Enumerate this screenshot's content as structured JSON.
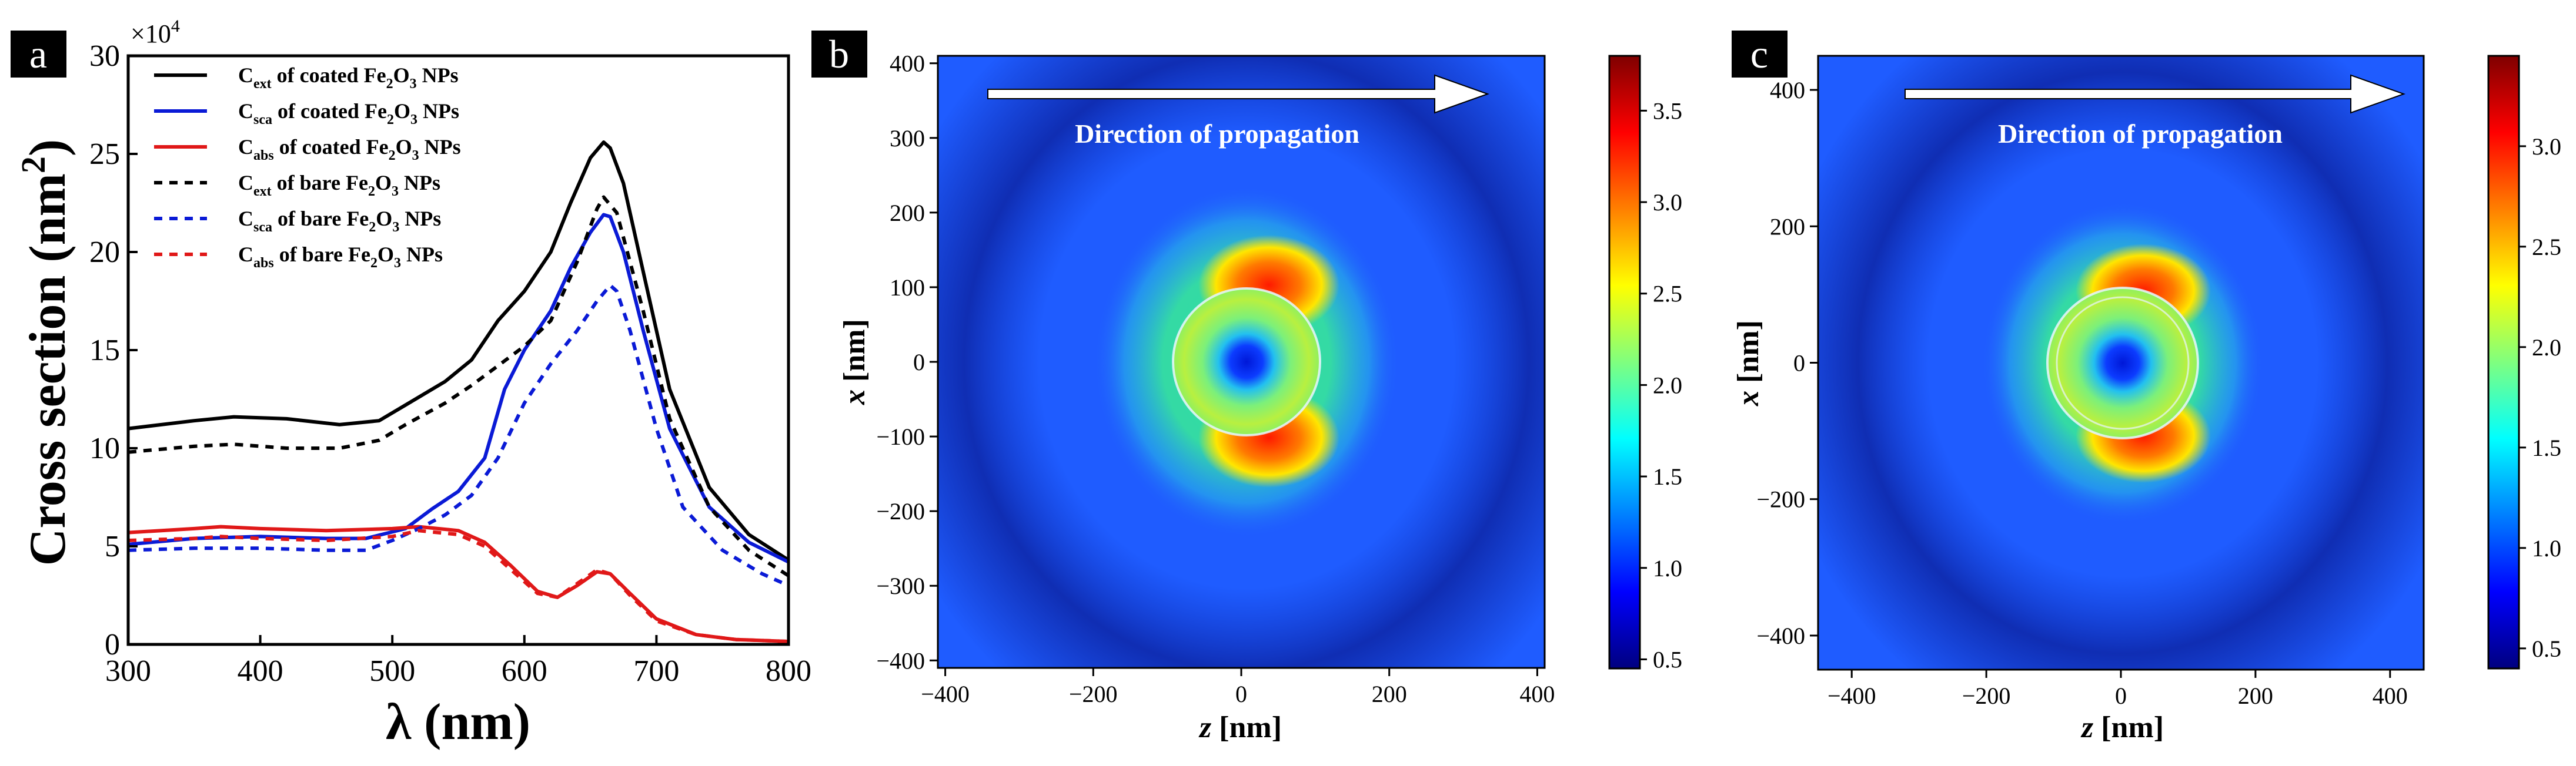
{
  "panel_labels": [
    "a",
    "b",
    "c"
  ],
  "chart_data": [
    {
      "type": "line",
      "panel": "a",
      "xlabel": "λ (nm)",
      "ylabel": "Cross section (nm²)",
      "ylabel_main": "Cross section (nm",
      "ylabel_sup": "2",
      "ylabel_close": ")",
      "y_multiplier": "×10",
      "y_multiplier_exp": "4",
      "xlim": [
        300,
        800
      ],
      "ylim": [
        0,
        30
      ],
      "xticks": [
        300,
        400,
        500,
        600,
        700,
        800
      ],
      "yticks": [
        0,
        5,
        10,
        15,
        20,
        25,
        30
      ],
      "series": [
        {
          "name": "Cext of coated Fe2O3 NPs",
          "sub": "ext",
          "color": "#000000",
          "style": "solid",
          "x": [
            300,
            350,
            380,
            420,
            460,
            490,
            510,
            540,
            560,
            580,
            600,
            620,
            635,
            650,
            660,
            665,
            675,
            690,
            710,
            740,
            770,
            800
          ],
          "y": [
            11.0,
            11.4,
            11.6,
            11.5,
            11.2,
            11.4,
            12.2,
            13.4,
            14.5,
            16.5,
            18.0,
            20.0,
            22.5,
            24.8,
            25.6,
            25.3,
            23.5,
            19.0,
            13.0,
            8.0,
            5.6,
            4.3
          ]
        },
        {
          "name": "Csca of coated Fe2O3 NPs",
          "sub": "sca",
          "color": "#0a1ad6",
          "style": "solid",
          "x": [
            300,
            350,
            400,
            450,
            480,
            510,
            530,
            550,
            570,
            585,
            600,
            620,
            635,
            650,
            660,
            665,
            675,
            690,
            710,
            740,
            770,
            800
          ],
          "y": [
            5.1,
            5.4,
            5.5,
            5.4,
            5.4,
            5.9,
            6.9,
            7.8,
            9.5,
            13.0,
            15.0,
            17.0,
            19.2,
            21.0,
            21.9,
            21.8,
            20.0,
            16.0,
            11.0,
            7.0,
            5.2,
            4.2
          ]
        },
        {
          "name": "Cabs of coated Fe2O3 NPs",
          "sub": "abs",
          "color": "#e01818",
          "style": "solid",
          "x": [
            300,
            350,
            370,
            400,
            450,
            500,
            520,
            550,
            570,
            590,
            610,
            625,
            640,
            655,
            665,
            680,
            700,
            730,
            760,
            800
          ],
          "y": [
            5.7,
            5.9,
            6.0,
            5.9,
            5.8,
            5.9,
            6.0,
            5.8,
            5.2,
            4.0,
            2.7,
            2.4,
            3.0,
            3.7,
            3.6,
            2.6,
            1.3,
            0.5,
            0.25,
            0.15
          ]
        },
        {
          "name": "Cext of bare Fe2O3 NPs",
          "sub": "ext",
          "color": "#000000",
          "style": "dash",
          "x": [
            300,
            350,
            380,
            420,
            460,
            490,
            510,
            540,
            560,
            580,
            600,
            620,
            640,
            655,
            660,
            670,
            690,
            710,
            740,
            770,
            800
          ],
          "y": [
            9.8,
            10.1,
            10.2,
            10.0,
            10.0,
            10.4,
            11.2,
            12.3,
            13.2,
            14.2,
            15.2,
            16.5,
            19.5,
            22.2,
            22.8,
            22.0,
            17.0,
            11.5,
            7.0,
            4.8,
            3.5
          ]
        },
        {
          "name": "Csca of bare Fe2O3 NPs",
          "sub": "sca",
          "color": "#0a1ad6",
          "style": "dash",
          "x": [
            300,
            350,
            400,
            450,
            480,
            500,
            520,
            540,
            560,
            580,
            600,
            620,
            640,
            655,
            665,
            670,
            680,
            700,
            720,
            750,
            780,
            800
          ],
          "y": [
            4.8,
            4.9,
            4.9,
            4.8,
            4.8,
            5.3,
            5.9,
            6.6,
            7.6,
            9.5,
            12.3,
            14.3,
            16.0,
            17.5,
            18.3,
            18.0,
            16.0,
            11.0,
            7.0,
            4.8,
            3.6,
            3.0
          ]
        },
        {
          "name": "Cabs of bare Fe2O3 NPs",
          "sub": "abs",
          "color": "#e01818",
          "style": "dash",
          "x": [
            300,
            350,
            370,
            400,
            450,
            500,
            520,
            550,
            570,
            590,
            610,
            625,
            640,
            655,
            665,
            680,
            700,
            730,
            760,
            800
          ],
          "y": [
            5.3,
            5.4,
            5.5,
            5.4,
            5.3,
            5.5,
            5.8,
            5.6,
            5.0,
            3.8,
            2.6,
            2.4,
            3.1,
            3.8,
            3.6,
            2.5,
            1.2,
            0.5,
            0.25,
            0.15
          ]
        }
      ]
    },
    {
      "type": "heatmap",
      "panel": "b",
      "xlabel": "z [nm]",
      "ylabel": "x [nm]",
      "xlabel_italic": "z",
      "ylabel_italic": "x",
      "label_unit": "[nm]",
      "xlim": [
        -410,
        410
      ],
      "ylim": [
        -410,
        410
      ],
      "xticks": [
        -400,
        -200,
        0,
        200,
        400
      ],
      "yticks": [
        -400,
        -300,
        -200,
        -100,
        0,
        100,
        200,
        300,
        400
      ],
      "annotation": "Direction of propagation",
      "colorbar_range": [
        0.45,
        3.8
      ],
      "colorbar_ticks": [
        0.5,
        1.0,
        1.5,
        2.0,
        2.5,
        3.0,
        3.5
      ],
      "particle_radius_nm": 100
    },
    {
      "type": "heatmap",
      "panel": "c",
      "xlabel": "z [nm]",
      "ylabel": "x [nm]",
      "xlabel_italic": "z",
      "ylabel_italic": "x",
      "label_unit": "[nm]",
      "xlim": [
        -450,
        450
      ],
      "ylim": [
        -450,
        450
      ],
      "xticks": [
        -400,
        -200,
        0,
        200,
        400
      ],
      "yticks": [
        -400,
        -200,
        0,
        200,
        400
      ],
      "annotation": "Direction of propagation",
      "colorbar_range": [
        0.4,
        3.45
      ],
      "colorbar_ticks": [
        0.5,
        1.0,
        1.5,
        2.0,
        2.5,
        3.0
      ],
      "particle_radius_nm": 100
    }
  ],
  "colors": {
    "panel_label_bg": "#000000",
    "panel_label_fg": "#ffffff",
    "background_field": "#1f5cff"
  }
}
